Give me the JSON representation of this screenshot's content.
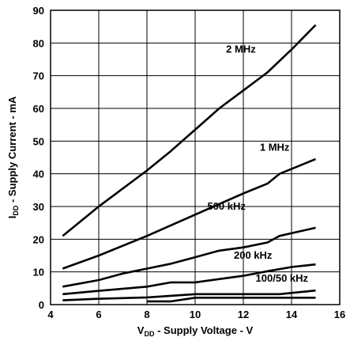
{
  "chart_data": {
    "type": "line",
    "xlabel_main": "V",
    "xlabel_sub": "DD",
    "xlabel_rest": " - Supply Voltage - V",
    "ylabel_main": "I",
    "ylabel_sub": "DD",
    "ylabel_rest": " - Supply Current - mA",
    "xlim": [
      4,
      16
    ],
    "ylim": [
      0,
      90
    ],
    "xticks": [
      4,
      6,
      8,
      10,
      12,
      14,
      16
    ],
    "yticks": [
      0,
      10,
      20,
      30,
      40,
      50,
      60,
      70,
      80,
      90
    ],
    "grid": true,
    "series": [
      {
        "name": "2 MHz",
        "x": [
          4.5,
          6,
          8,
          9,
          10,
          11,
          12,
          13,
          14,
          15
        ],
        "y": [
          21,
          30,
          41,
          47,
          53.5,
          60,
          65.5,
          71,
          78,
          85.5
        ]
      },
      {
        "name": "1 MHz",
        "x": [
          4.5,
          6,
          8,
          10,
          12,
          13,
          13.5,
          15
        ],
        "y": [
          11,
          15,
          21,
          27.5,
          34,
          37,
          40,
          44.5
        ]
      },
      {
        "name": "500 kHz",
        "x": [
          4.5,
          6,
          7,
          8,
          9,
          10,
          11,
          12,
          13,
          13.5,
          15
        ],
        "y": [
          5.5,
          7.5,
          9.5,
          11,
          12.5,
          14.5,
          16.5,
          17.5,
          19,
          21,
          23.5
        ]
      },
      {
        "name": "200 kHz",
        "x": [
          4.5,
          6,
          8,
          9,
          10,
          12,
          13,
          14,
          15
        ],
        "y": [
          3.2,
          4.2,
          5.5,
          6.8,
          6.8,
          8.8,
          10.2,
          11.5,
          12.3
        ]
      },
      {
        "name": "100/50 kHz",
        "x": [
          4.5,
          6,
          8,
          10,
          12,
          13.5,
          15
        ],
        "y": [
          1.3,
          1.8,
          2.2,
          3.2,
          3.2,
          3.2,
          4.3
        ]
      },
      {
        "name": "",
        "x": [
          8,
          9,
          10,
          12,
          14,
          15
        ],
        "y": [
          1,
          1,
          2.1,
          2.1,
          2.1,
          2.1
        ]
      }
    ],
    "label_positions_data": [
      {
        "text": "2 MHz",
        "x": 11.9,
        "y": 77
      },
      {
        "text": "1 MHz",
        "x": 13.3,
        "y": 47
      },
      {
        "text": "500 kHz",
        "x": 11.3,
        "y": 29
      },
      {
        "text": "200 kHz",
        "x": 12.4,
        "y": 14
      },
      {
        "text": "100/50 kHz",
        "x": 13.6,
        "y": 7
      }
    ]
  }
}
